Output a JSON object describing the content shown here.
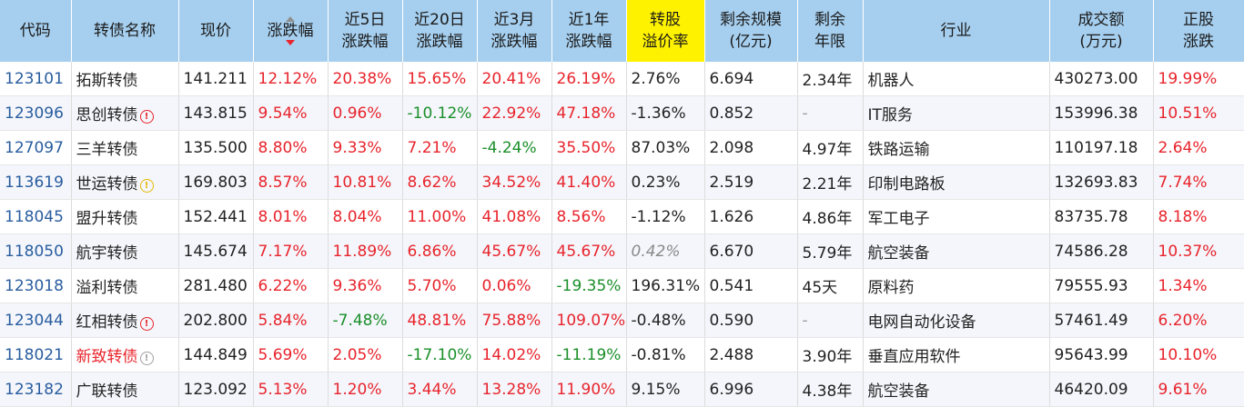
{
  "headers": [
    "代码",
    "转债名称",
    "现价",
    "涨跌幅",
    "近5日\n涨跌幅",
    "近20日\n涨跌幅",
    "近3月\n涨跌幅",
    "近1年\n涨跌幅",
    "转股\n溢价率",
    "剩余规模\n(亿元)",
    "剩余\n年限",
    "行业",
    "成交额\n(万元)",
    "正股\n涨跌"
  ],
  "h": {
    "c0": "代码",
    "c1": "转债名称",
    "c2": "现价",
    "c3": "涨跌幅",
    "c4a": "近5日",
    "c4b": "涨跌幅",
    "c5a": "近20日",
    "c5b": "涨跌幅",
    "c6a": "近3月",
    "c6b": "涨跌幅",
    "c7a": "近1年",
    "c7b": "涨跌幅",
    "c8a": "转股",
    "c8b": "溢价率",
    "c9a": "剩余规模",
    "c9b": "(亿元)",
    "c10a": "剩余",
    "c10b": "年限",
    "c11": "行业",
    "c12a": "成交额",
    "c12b": "(万元)",
    "c13a": "正股",
    "c13b": "涨跌"
  },
  "rows": [
    {
      "code": "123101",
      "name": "拓斯转债",
      "icon": "",
      "price": "141.211",
      "chg": "12.12%",
      "d5": "20.38%",
      "d20": "15.65%",
      "m3": "20.41%",
      "y1": "26.19%",
      "prem": "2.76%",
      "size": "6.694",
      "years": "2.34年",
      "ind": "机器人",
      "amt": "430273.00",
      "stk": "19.99%"
    },
    {
      "code": "123096",
      "name": "思创转债",
      "icon": "!",
      "price": "143.815",
      "chg": "9.54%",
      "d5": "0.96%",
      "d20": "-10.12%",
      "m3": "22.92%",
      "y1": "47.18%",
      "prem": "-1.36%",
      "size": "0.852",
      "years": "-",
      "ind": "IT服务",
      "amt": "153996.38",
      "stk": "10.51%"
    },
    {
      "code": "127097",
      "name": "三羊转债",
      "icon": "",
      "price": "135.500",
      "chg": "8.80%",
      "d5": "9.33%",
      "d20": "7.21%",
      "m3": "-4.24%",
      "y1": "35.50%",
      "prem": "87.03%",
      "size": "2.098",
      "years": "4.97年",
      "ind": "铁路运输",
      "amt": "110197.18",
      "stk": "2.64%"
    },
    {
      "code": "113619",
      "name": "世运转债",
      "icon": "!",
      "price": "169.803",
      "chg": "8.57%",
      "d5": "10.81%",
      "d20": "8.62%",
      "m3": "34.52%",
      "y1": "41.40%",
      "prem": "0.23%",
      "size": "2.519",
      "years": "2.21年",
      "ind": "印制电路板",
      "amt": "132693.83",
      "stk": "7.74%"
    },
    {
      "code": "118045",
      "name": "盟升转债",
      "icon": "",
      "price": "152.441",
      "chg": "8.01%",
      "d5": "8.04%",
      "d20": "11.00%",
      "m3": "41.08%",
      "y1": "8.56%",
      "prem": "-1.12%",
      "size": "1.626",
      "years": "4.86年",
      "ind": "军工电子",
      "amt": "83735.78",
      "stk": "8.18%"
    },
    {
      "code": "118050",
      "name": "航宇转债",
      "icon": "",
      "price": "145.674",
      "chg": "7.17%",
      "d5": "11.89%",
      "d20": "6.86%",
      "m3": "45.67%",
      "y1": "45.67%",
      "prem": "0.42%",
      "size": "6.670",
      "years": "5.79年",
      "ind": "航空装备",
      "amt": "74586.28",
      "stk": "10.37%"
    },
    {
      "code": "123018",
      "name": "溢利转债",
      "icon": "",
      "price": "281.480",
      "chg": "6.22%",
      "d5": "9.36%",
      "d20": "5.70%",
      "m3": "0.06%",
      "y1": "-19.35%",
      "prem": "196.31%",
      "size": "0.541",
      "years": "45天",
      "ind": "原料药",
      "amt": "79555.93",
      "stk": "1.34%"
    },
    {
      "code": "123044",
      "name": "红相转债",
      "icon": "!",
      "price": "202.800",
      "chg": "5.84%",
      "d5": "-7.48%",
      "d20": "48.81%",
      "m3": "75.88%",
      "y1": "109.07%",
      "prem": "-0.48%",
      "size": "0.590",
      "years": "-",
      "ind": "电网自动化设备",
      "amt": "57461.49",
      "stk": "6.20%"
    },
    {
      "code": "118021",
      "name": "新致转债",
      "icon": "!",
      "price": "144.849",
      "chg": "5.69%",
      "d5": "2.05%",
      "d20": "-17.10%",
      "m3": "14.02%",
      "y1": "-11.19%",
      "prem": "-0.81%",
      "size": "2.488",
      "years": "3.90年",
      "ind": "垂直应用软件",
      "amt": "95643.99",
      "stk": "10.10%"
    },
    {
      "code": "123182",
      "name": "广联转债",
      "icon": "",
      "price": "123.092",
      "chg": "5.13%",
      "d5": "1.20%",
      "d20": "3.44%",
      "m3": "13.28%",
      "y1": "11.90%",
      "prem": "9.15%",
      "size": "6.996",
      "years": "4.38年",
      "ind": "航空装备",
      "amt": "46420.09",
      "stk": "9.61%"
    }
  ],
  "icon_colors": {
    "red": "#e8242c",
    "yellow": "#e6b800",
    "gray": "#a0a0a0"
  }
}
